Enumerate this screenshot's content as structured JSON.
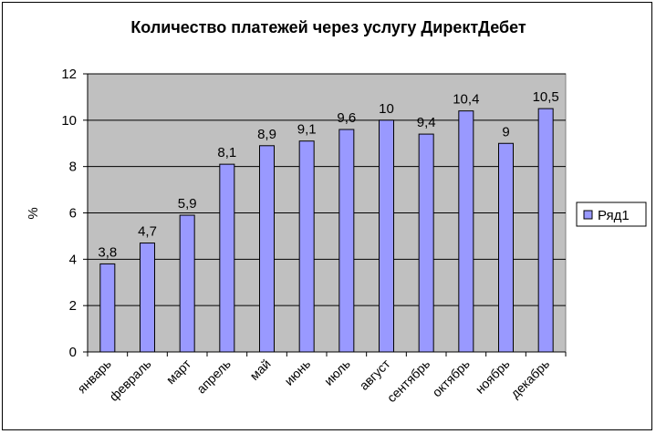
{
  "chart_data": {
    "type": "bar",
    "title": "Количество платежей через услугу ДиректДебет",
    "xlabel": "",
    "ylabel": "%",
    "categories": [
      "январь",
      "февраль",
      "март",
      "апрель",
      "май",
      "июнь",
      "июль",
      "август",
      "сентябрь",
      "октябрь",
      "ноябрь",
      "декабрь"
    ],
    "series": [
      {
        "name": "Ряд1",
        "values": [
          3.8,
          4.7,
          5.9,
          8.1,
          8.9,
          9.1,
          9.6,
          10,
          9.4,
          10.4,
          9,
          10.5
        ],
        "labels": [
          "3,8",
          "4,7",
          "5,9",
          "8,1",
          "8,9",
          "9,1",
          "9,6",
          "10",
          "9,4",
          "10,4",
          "9",
          "10,5"
        ],
        "color": "#9999FF"
      }
    ],
    "ylim": [
      0,
      12
    ],
    "yticks": [
      0,
      2,
      4,
      6,
      8,
      10,
      12
    ],
    "grid": true,
    "plot_background": "#C0C0C0",
    "legend": "right"
  }
}
